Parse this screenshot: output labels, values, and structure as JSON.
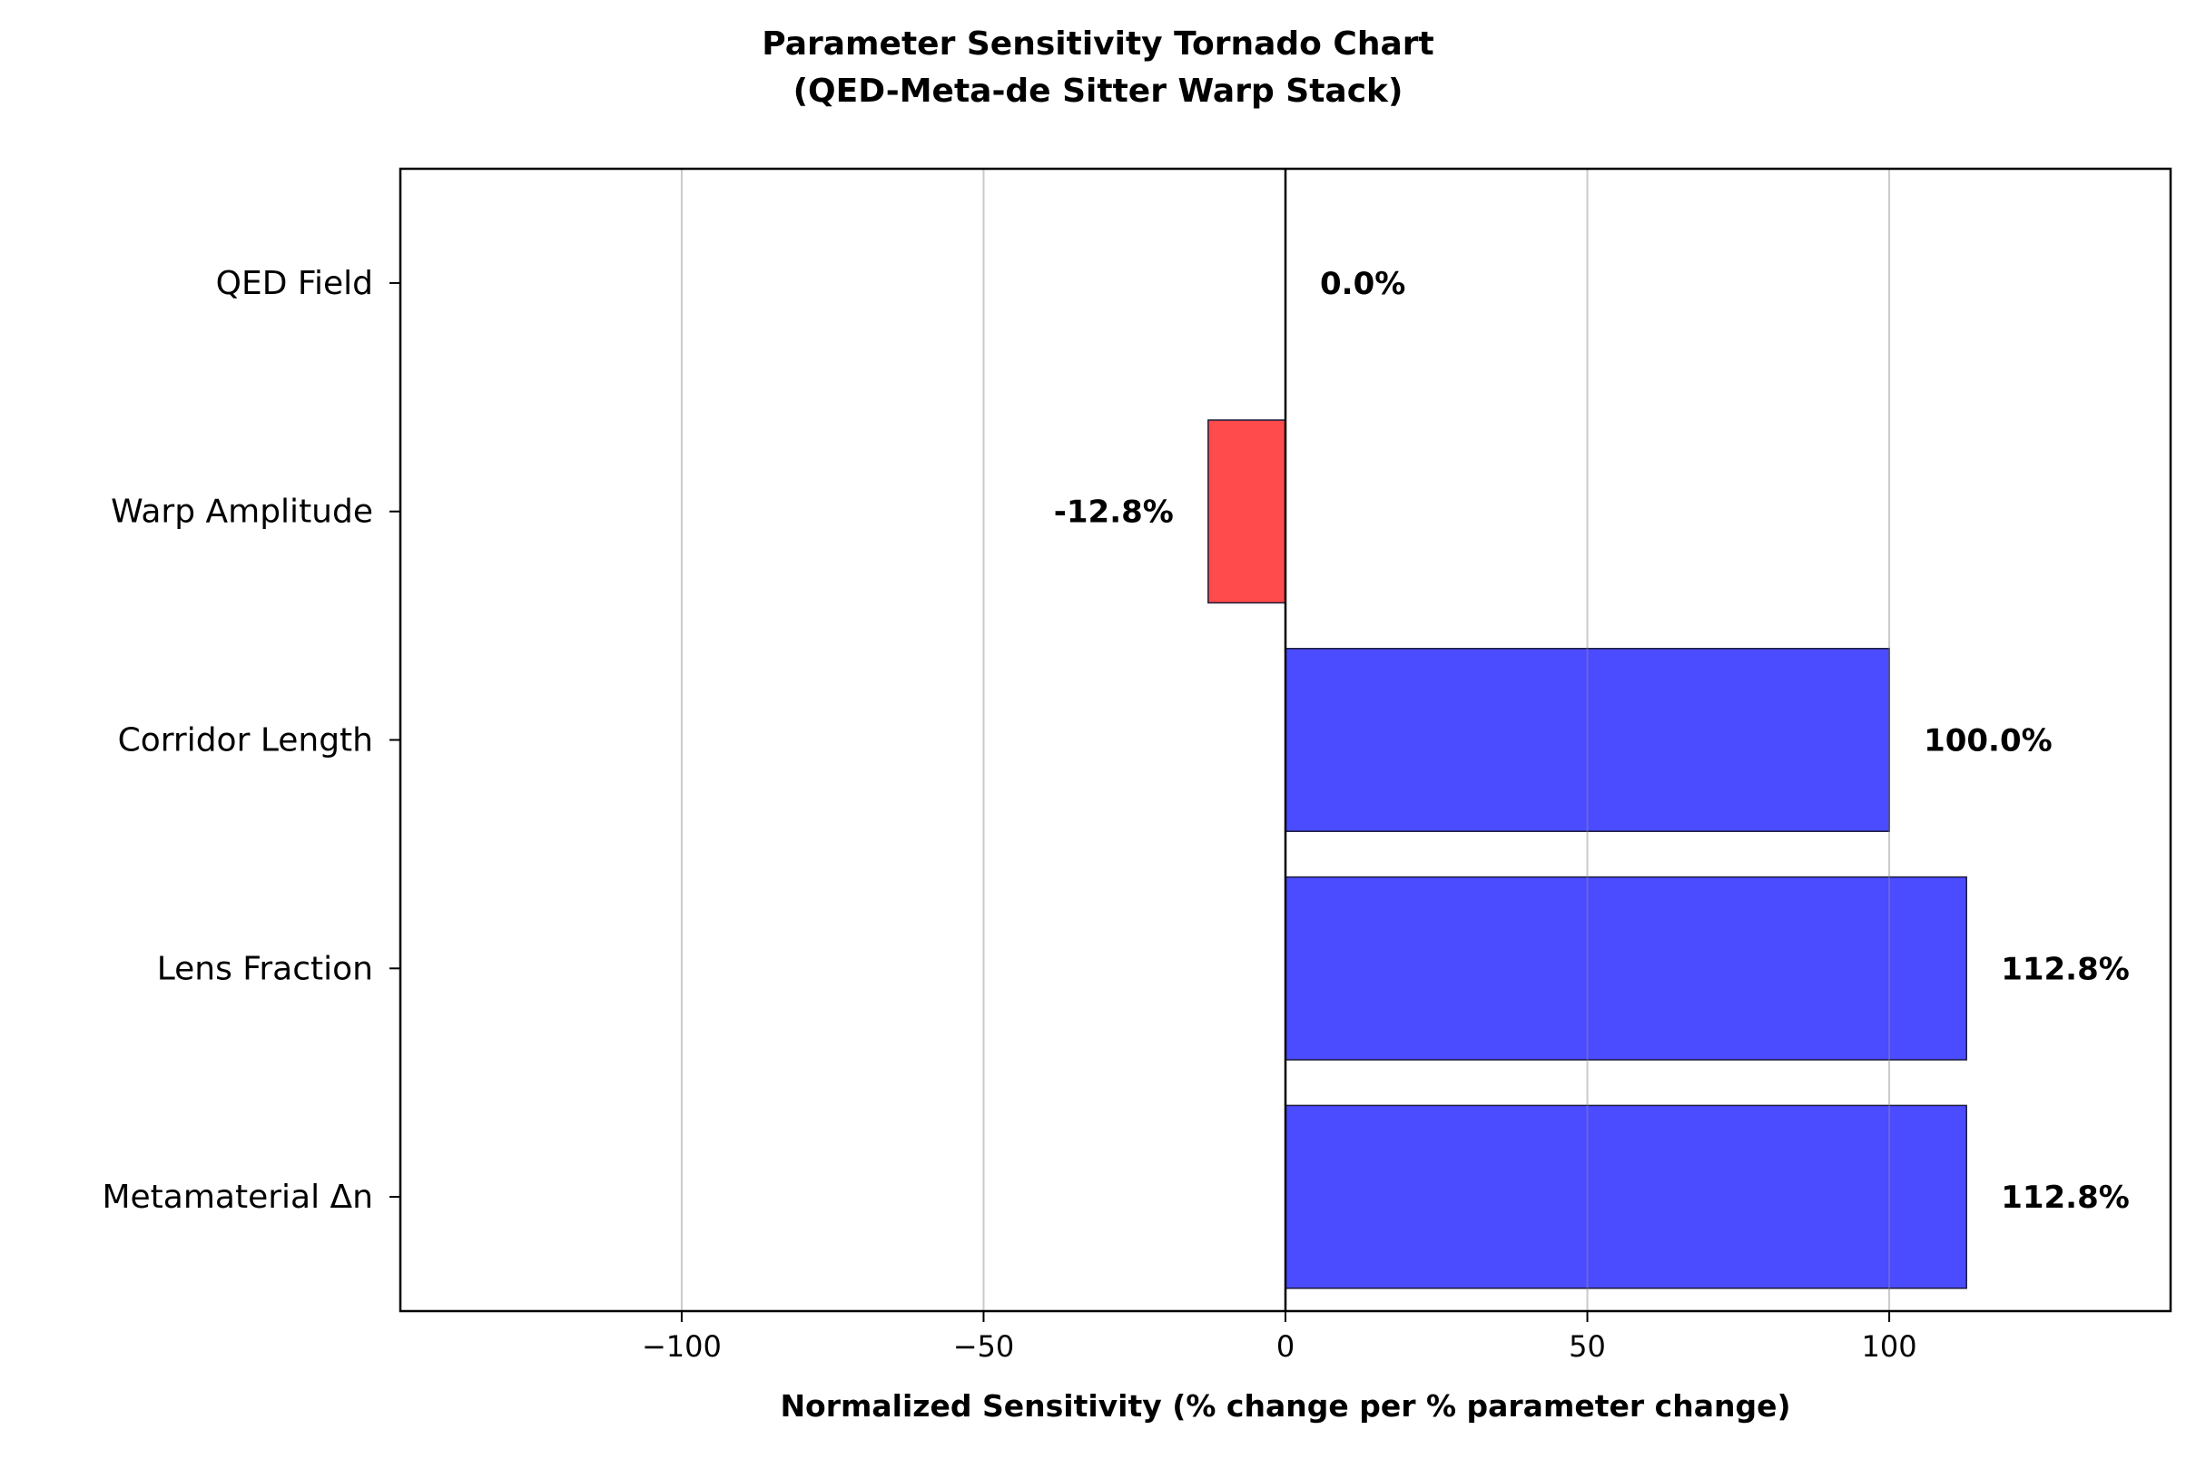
{
  "chart_data": {
    "type": "bar",
    "orientation": "horizontal",
    "title": [
      "Parameter Sensitivity Tornado Chart",
      "(QED-Meta-de Sitter Warp Stack)"
    ],
    "xlabel": "Normalized Sensitivity (% change per % parameter change)",
    "ylabel": "",
    "categories": [
      "QED Field",
      "Warp Amplitude",
      "Corridor Length",
      "Lens Fraction",
      "Metamaterial Δn"
    ],
    "values": [
      0.0,
      -12.8,
      100.0,
      112.8,
      112.8
    ],
    "data_labels": [
      "0.0%",
      "-12.8%",
      "100.0%",
      "112.8%",
      "112.8%"
    ],
    "xlim": [
      -146.6,
      146.6
    ],
    "xticks": [
      -100,
      -50,
      0,
      50,
      100
    ],
    "xtick_labels": [
      "−100",
      "−50",
      "0",
      "50",
      "100"
    ],
    "grid": "x-axis vertical lines",
    "colors": {
      "positive": "#4b4bff",
      "negative": "#ff4b4b",
      "edge": "#1a1a3a",
      "zero_line": "#000000",
      "grid": "#e3e3e3"
    }
  }
}
